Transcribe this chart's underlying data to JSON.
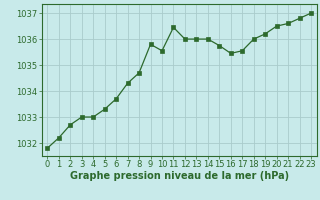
{
  "x": [
    0,
    1,
    2,
    3,
    4,
    5,
    6,
    7,
    8,
    9,
    10,
    11,
    12,
    13,
    14,
    15,
    16,
    17,
    18,
    19,
    20,
    21,
    22,
    23
  ],
  "y": [
    1031.8,
    1032.2,
    1032.7,
    1033.0,
    1033.0,
    1033.3,
    1033.7,
    1034.3,
    1034.7,
    1035.8,
    1035.55,
    1036.45,
    1036.0,
    1036.0,
    1036.0,
    1035.75,
    1035.45,
    1035.55,
    1036.0,
    1036.2,
    1036.5,
    1036.6,
    1036.8,
    1037.0
  ],
  "line_color": "#2d6a2d",
  "marker_color": "#2d6a2d",
  "bg_color": "#c8eaea",
  "grid_color": "#aacccc",
  "xlabel": "Graphe pression niveau de la mer (hPa)",
  "yticks": [
    1032,
    1033,
    1034,
    1035,
    1036,
    1037
  ],
  "xticks": [
    0,
    1,
    2,
    3,
    4,
    5,
    6,
    7,
    8,
    9,
    10,
    11,
    12,
    13,
    14,
    15,
    16,
    17,
    18,
    19,
    20,
    21,
    22,
    23
  ],
  "ylim": [
    1031.5,
    1037.35
  ],
  "xlim": [
    -0.5,
    23.5
  ],
  "tick_color": "#2d6a2d",
  "label_color": "#2d6a2d",
  "label_fontsize": 7.0,
  "tick_fontsize": 6.0
}
